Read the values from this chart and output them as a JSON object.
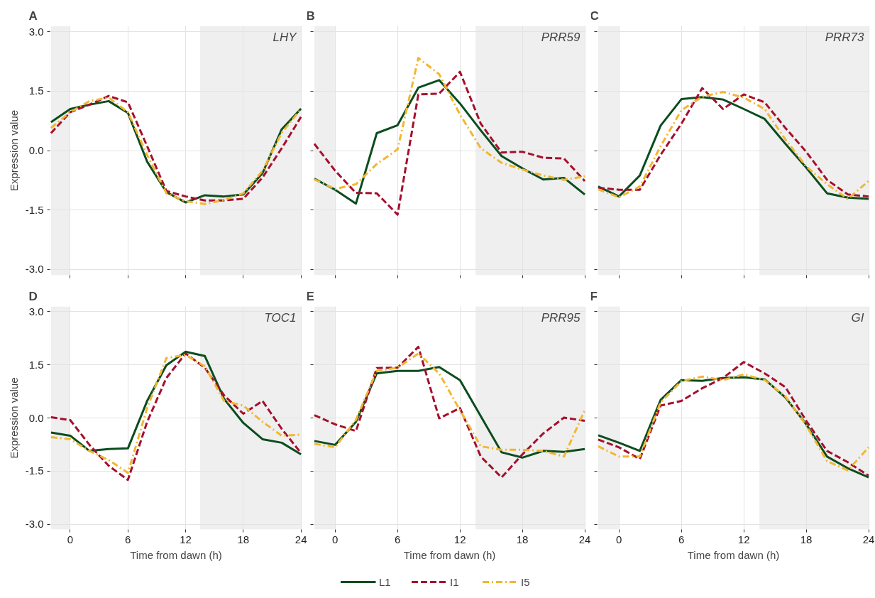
{
  "chart_data": [
    {
      "type": "line",
      "title": "A",
      "annotations": [
        "LHY"
      ],
      "ylabel": "Expression value",
      "tick_labels": "y",
      "grid": true,
      "x": [
        -2,
        0,
        2,
        4,
        6,
        8,
        10,
        12,
        14,
        16,
        18,
        20,
        22,
        24
      ],
      "xlim": [
        -2.1,
        24.1
      ],
      "xticks": [
        0,
        6,
        12,
        18,
        24
      ],
      "ylim": [
        -3.15,
        3.15
      ],
      "yticks": [
        {
          "value": -3,
          "label": "-3.0"
        },
        {
          "value": -1.5,
          "label": "-1.5"
        },
        {
          "value": 0,
          "label": "0.0"
        },
        {
          "value": 1.5,
          "label": "1.5"
        },
        {
          "value": 3,
          "label": "3.0"
        }
      ],
      "bands": [
        {
          "axis": "x",
          "from": -2,
          "to": 0,
          "color": "#efefef"
        },
        {
          "axis": "x",
          "from": 13.5,
          "to": 24,
          "color": "#efefef"
        }
      ],
      "series": [
        {
          "color": "#0b4d1e",
          "line_style": "solid",
          "values": [
            0.72,
            1.05,
            1.16,
            1.25,
            0.95,
            -0.28,
            -1.05,
            -1.31,
            -1.13,
            -1.16,
            -1.11,
            -0.57,
            0.54,
            1.06
          ]
        },
        {
          "color": "#a50f2d",
          "line_style": "dashed",
          "values": [
            0.44,
            0.97,
            1.16,
            1.38,
            1.22,
            0.11,
            -1.02,
            -1.16,
            -1.26,
            -1.26,
            -1.22,
            -0.68,
            0.06,
            0.85
          ]
        },
        {
          "color": "#f2b632",
          "line_style": "dashdot",
          "values": [
            0.57,
            0.97,
            1.25,
            1.34,
            0.97,
            -0.11,
            -1.08,
            -1.28,
            -1.35,
            -1.25,
            -1.08,
            -0.51,
            0.45,
            1.05
          ]
        }
      ]
    },
    {
      "type": "line",
      "title": "B",
      "annotations": [
        "PRR59"
      ],
      "tick_labels": false,
      "grid": true,
      "x": [
        -2,
        0,
        2,
        4,
        6,
        8,
        10,
        12,
        14,
        16,
        18,
        20,
        22,
        24
      ],
      "xlim": [
        -2.1,
        24.1
      ],
      "xticks": [
        0,
        6,
        12,
        18,
        24
      ],
      "ylim": [
        -3.15,
        3.15
      ],
      "yticks": [
        -3,
        -1.5,
        0,
        1.5,
        3
      ],
      "bands": [
        {
          "axis": "x",
          "from": -2,
          "to": 0,
          "color": "#efefef"
        },
        {
          "axis": "x",
          "from": 13.5,
          "to": 24,
          "color": "#efefef"
        }
      ],
      "series": [
        {
          "color": "#0b4d1e",
          "line_style": "solid",
          "values": [
            -0.71,
            -0.99,
            -1.34,
            0.44,
            0.64,
            1.59,
            1.78,
            1.19,
            0.51,
            -0.14,
            -0.45,
            -0.73,
            -0.69,
            -1.11
          ]
        },
        {
          "color": "#a50f2d",
          "line_style": "dashed",
          "values": [
            0.17,
            -0.51,
            -1.07,
            -1.08,
            -1.62,
            1.42,
            1.44,
            1.99,
            0.68,
            -0.05,
            -0.03,
            -0.18,
            -0.2,
            -0.77
          ]
        },
        {
          "color": "#f2b632",
          "line_style": "dashdot",
          "values": [
            -0.73,
            -0.97,
            -0.85,
            -0.34,
            0.03,
            2.34,
            1.93,
            0.91,
            0.06,
            -0.31,
            -0.48,
            -0.63,
            -0.74,
            -0.65
          ]
        }
      ]
    },
    {
      "type": "line",
      "title": "C",
      "annotations": [
        "PRR73"
      ],
      "tick_labels": false,
      "grid": true,
      "x": [
        -2,
        0,
        2,
        4,
        6,
        8,
        10,
        12,
        14,
        16,
        18,
        20,
        22,
        24
      ],
      "xlim": [
        -2.1,
        24.1
      ],
      "xticks": [
        0,
        6,
        12,
        18,
        24
      ],
      "ylim": [
        -3.15,
        3.15
      ],
      "yticks": [
        -3,
        -1.5,
        0,
        1.5,
        3
      ],
      "bands": [
        {
          "axis": "x",
          "from": -2,
          "to": 0,
          "color": "#efefef"
        },
        {
          "axis": "x",
          "from": 13.5,
          "to": 24,
          "color": "#efefef"
        }
      ],
      "series": [
        {
          "color": "#0b4d1e",
          "line_style": "solid",
          "values": [
            -0.91,
            -1.16,
            -0.63,
            0.63,
            1.3,
            1.35,
            1.29,
            1.05,
            0.8,
            0.17,
            -0.43,
            -1.08,
            -1.19,
            -1.22
          ]
        },
        {
          "color": "#a50f2d",
          "line_style": "dashed",
          "values": [
            -0.94,
            -0.99,
            -0.99,
            -0.11,
            0.68,
            1.58,
            1.05,
            1.42,
            1.22,
            0.57,
            -0.03,
            -0.74,
            -1.11,
            -1.16
          ]
        },
        {
          "color": "#f2b632",
          "line_style": "dashdot",
          "values": [
            -0.98,
            -1.18,
            -0.91,
            0.11,
            1.02,
            1.36,
            1.48,
            1.34,
            1.05,
            0.28,
            -0.4,
            -0.85,
            -1.22,
            -0.77
          ]
        }
      ]
    },
    {
      "type": "line",
      "title": "D",
      "annotations": [
        "TOC1"
      ],
      "xlabel": "Time from dawn (h)",
      "ylabel": "Expression value",
      "grid": true,
      "x": [
        -2,
        0,
        2,
        4,
        6,
        8,
        10,
        12,
        14,
        16,
        18,
        20,
        22,
        24
      ],
      "xlim": [
        -2.1,
        24.1
      ],
      "xticks": [
        0,
        6,
        12,
        18,
        24
      ],
      "ylim": [
        -3.15,
        3.15
      ],
      "yticks": [
        {
          "value": -3,
          "label": "-3.0"
        },
        {
          "value": -1.5,
          "label": "-1.5"
        },
        {
          "value": 0,
          "label": "0.0"
        },
        {
          "value": 1.5,
          "label": "1.5"
        },
        {
          "value": 3,
          "label": "3.0"
        }
      ],
      "bands": [
        {
          "axis": "x",
          "from": -2,
          "to": 0,
          "color": "#efefef"
        },
        {
          "axis": "x",
          "from": 13.5,
          "to": 24,
          "color": "#efefef"
        }
      ],
      "series": [
        {
          "color": "#0b4d1e",
          "line_style": "solid",
          "values": [
            -0.41,
            -0.5,
            -0.93,
            -0.88,
            -0.86,
            0.48,
            1.49,
            1.87,
            1.75,
            0.54,
            -0.14,
            -0.6,
            -0.7,
            -1.03
          ]
        },
        {
          "color": "#a50f2d",
          "line_style": "dashed",
          "values": [
            0.02,
            -0.06,
            -0.76,
            -1.35,
            -1.75,
            -0.11,
            1.13,
            1.82,
            1.42,
            0.64,
            0.12,
            0.48,
            -0.31,
            -0.99
          ]
        },
        {
          "color": "#f2b632",
          "line_style": "dashdot",
          "values": [
            -0.54,
            -0.6,
            -0.93,
            -1.19,
            -1.55,
            0.28,
            1.69,
            1.78,
            1.46,
            0.48,
            0.35,
            -0.11,
            -0.5,
            -0.47
          ]
        }
      ]
    },
    {
      "type": "line",
      "title": "E",
      "annotations": [
        "PRR95"
      ],
      "xlabel": "Time from dawn (h)",
      "tick_labels": "x",
      "grid": true,
      "legend": "bottom",
      "x": [
        -2,
        0,
        2,
        4,
        6,
        8,
        10,
        12,
        14,
        16,
        18,
        20,
        22,
        24
      ],
      "xlim": [
        -2.1,
        24.1
      ],
      "xticks": [
        0,
        6,
        12,
        18,
        24
      ],
      "ylim": [
        -3.15,
        3.15
      ],
      "yticks": [
        -3,
        -1.5,
        0,
        1.5,
        3
      ],
      "bands": [
        {
          "axis": "x",
          "from": -2,
          "to": 0,
          "color": "#efefef"
        },
        {
          "axis": "x",
          "from": 13.5,
          "to": 24,
          "color": "#efefef"
        }
      ],
      "series": [
        {
          "name": "L1",
          "color": "#0b4d1e",
          "line_style": "solid",
          "values": [
            -0.65,
            -0.76,
            -0.11,
            1.26,
            1.33,
            1.33,
            1.44,
            1.07,
            0.05,
            -0.97,
            -1.12,
            -0.93,
            -0.96,
            -0.88
          ]
        },
        {
          "name": "I1",
          "color": "#a50f2d",
          "line_style": "dashed",
          "values": [
            0.08,
            -0.18,
            -0.37,
            1.41,
            1.42,
            2.01,
            -0.01,
            0.28,
            -1.09,
            -1.68,
            -1.03,
            -0.44,
            0.01,
            -0.08
          ]
        },
        {
          "name": "I5",
          "color": "#f2b632",
          "line_style": "dashdot",
          "values": [
            -0.73,
            -0.83,
            -0.05,
            1.33,
            1.42,
            1.82,
            1.26,
            0.22,
            -0.8,
            -0.9,
            -0.9,
            -0.93,
            -1.09,
            0.22
          ]
        }
      ]
    },
    {
      "type": "line",
      "title": "F",
      "annotations": [
        "GI"
      ],
      "xlabel": "Time from dawn (h)",
      "tick_labels": "x",
      "grid": true,
      "x": [
        -2,
        0,
        2,
        4,
        6,
        8,
        10,
        12,
        14,
        16,
        18,
        20,
        22,
        24
      ],
      "xlim": [
        -2.1,
        24.1
      ],
      "xticks": [
        0,
        6,
        12,
        18,
        24
      ],
      "ylim": [
        -3.15,
        3.15
      ],
      "yticks": [
        -3,
        -1.5,
        0,
        1.5,
        3
      ],
      "bands": [
        {
          "axis": "x",
          "from": -2,
          "to": 0,
          "color": "#efefef"
        },
        {
          "axis": "x",
          "from": 13.5,
          "to": 24,
          "color": "#efefef"
        }
      ],
      "series": [
        {
          "color": "#0b4d1e",
          "line_style": "solid",
          "values": [
            -0.49,
            -0.7,
            -0.93,
            0.51,
            1.07,
            1.05,
            1.13,
            1.15,
            1.09,
            0.58,
            -0.18,
            -1.09,
            -1.42,
            -1.68
          ]
        },
        {
          "color": "#a50f2d",
          "line_style": "dashed",
          "values": [
            -0.61,
            -0.83,
            -1.16,
            0.35,
            0.48,
            0.84,
            1.13,
            1.58,
            1.26,
            0.87,
            -0.08,
            -0.93,
            -1.25,
            -1.63
          ]
        },
        {
          "color": "#f2b632",
          "line_style": "dashdot",
          "values": [
            -0.8,
            -1.09,
            -1.09,
            0.44,
            1.04,
            1.17,
            1.07,
            1.23,
            1.07,
            0.61,
            -0.21,
            -1.22,
            -1.48,
            -0.83
          ]
        }
      ]
    }
  ]
}
